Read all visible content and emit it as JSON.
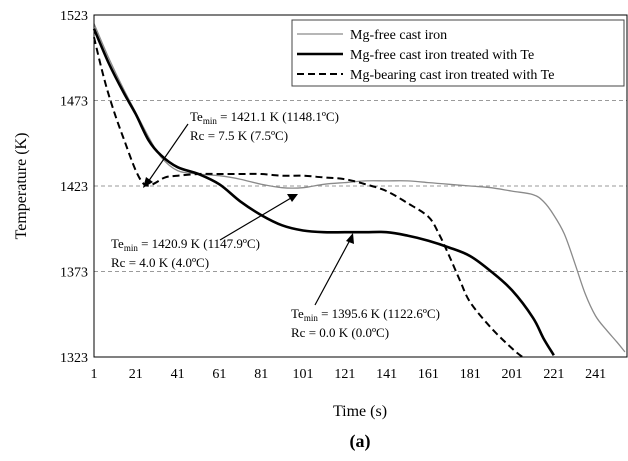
{
  "chart_data": {
    "type": "line",
    "panel_label": "(a)",
    "xlabel": "Time (s)",
    "ylabel": "Temperature (K)",
    "xlim": [
      1,
      256
    ],
    "ylim": [
      1323,
      1523
    ],
    "xticks": [
      1,
      21,
      41,
      61,
      81,
      101,
      121,
      141,
      161,
      181,
      201,
      221,
      241
    ],
    "yticks": [
      1323,
      1373,
      1423,
      1473,
      1523
    ],
    "grid": "horizontal dashed",
    "legend_position": "top-right",
    "series": [
      {
        "name": "Mg-free cast iron",
        "color": "#8a8a8a",
        "style": "solid-thin",
        "points": [
          [
            1,
            1518
          ],
          [
            8,
            1498
          ],
          [
            15,
            1480
          ],
          [
            21,
            1466
          ],
          [
            27,
            1452
          ],
          [
            33,
            1440
          ],
          [
            41,
            1432
          ],
          [
            51,
            1430
          ],
          [
            61,
            1429
          ],
          [
            71,
            1427
          ],
          [
            81,
            1424
          ],
          [
            91,
            1422
          ],
          [
            101,
            1422
          ],
          [
            111,
            1424
          ],
          [
            121,
            1425
          ],
          [
            131,
            1426
          ],
          [
            141,
            1426
          ],
          [
            151,
            1426
          ],
          [
            161,
            1425
          ],
          [
            171,
            1424
          ],
          [
            181,
            1423
          ],
          [
            191,
            1422
          ],
          [
            201,
            1420
          ],
          [
            211,
            1418
          ],
          [
            216,
            1414
          ],
          [
            221,
            1406
          ],
          [
            226,
            1395
          ],
          [
            231,
            1378
          ],
          [
            236,
            1360
          ],
          [
            241,
            1347
          ],
          [
            246,
            1339
          ],
          [
            251,
            1332
          ],
          [
            255,
            1326
          ]
        ]
      },
      {
        "name": "Mg-free cast iron treated with Te",
        "color": "#000000",
        "style": "solid-thick",
        "points": [
          [
            1,
            1515
          ],
          [
            8,
            1495
          ],
          [
            15,
            1478
          ],
          [
            21,
            1465
          ],
          [
            27,
            1450
          ],
          [
            33,
            1441
          ],
          [
            41,
            1434
          ],
          [
            51,
            1430
          ],
          [
            61,
            1424
          ],
          [
            71,
            1414
          ],
          [
            81,
            1406
          ],
          [
            91,
            1400
          ],
          [
            101,
            1397
          ],
          [
            111,
            1396
          ],
          [
            121,
            1396
          ],
          [
            131,
            1396
          ],
          [
            141,
            1396
          ],
          [
            151,
            1394
          ],
          [
            161,
            1391
          ],
          [
            171,
            1387
          ],
          [
            181,
            1382
          ],
          [
            191,
            1373
          ],
          [
            201,
            1362
          ],
          [
            211,
            1346
          ],
          [
            216,
            1334
          ],
          [
            221,
            1324
          ]
        ]
      },
      {
        "name": "Mg-bearing cast iron treated with Te",
        "color": "#000000",
        "style": "dashed",
        "points": [
          [
            1,
            1510
          ],
          [
            6,
            1485
          ],
          [
            11,
            1465
          ],
          [
            16,
            1448
          ],
          [
            21,
            1432
          ],
          [
            25,
            1424
          ],
          [
            29,
            1424
          ],
          [
            35,
            1428
          ],
          [
            41,
            1429
          ],
          [
            51,
            1430
          ],
          [
            61,
            1430
          ],
          [
            71,
            1430
          ],
          [
            81,
            1430
          ],
          [
            91,
            1429
          ],
          [
            101,
            1429
          ],
          [
            111,
            1428
          ],
          [
            121,
            1427
          ],
          [
            131,
            1424
          ],
          [
            141,
            1420
          ],
          [
            151,
            1413
          ],
          [
            161,
            1405
          ],
          [
            166,
            1395
          ],
          [
            171,
            1382
          ],
          [
            176,
            1368
          ],
          [
            181,
            1355
          ],
          [
            191,
            1340
          ],
          [
            201,
            1328
          ],
          [
            206,
            1323
          ]
        ]
      }
    ],
    "annotations": [
      {
        "te_base": "Te",
        "te_sub": "min",
        "te_value": " = 1421.1 K (1148.1ºC)",
        "rc": "Rc = 7.5 K (7.5ºC)",
        "target": [
          24,
          1424
        ]
      },
      {
        "te_base": "Te",
        "te_sub": "min",
        "te_value": " = 1420.9 K (1147.9ºC)",
        "rc": "Rc = 4.0 K (4.0ºC)",
        "target": [
          101,
          1422
        ]
      },
      {
        "te_base": "Te",
        "te_sub": "min",
        "te_value": " = 1395.6 K (1122.6ºC)",
        "rc": "Rc = 0.0 K (0.0ºC)",
        "target": [
          121,
          1396
        ]
      }
    ]
  }
}
